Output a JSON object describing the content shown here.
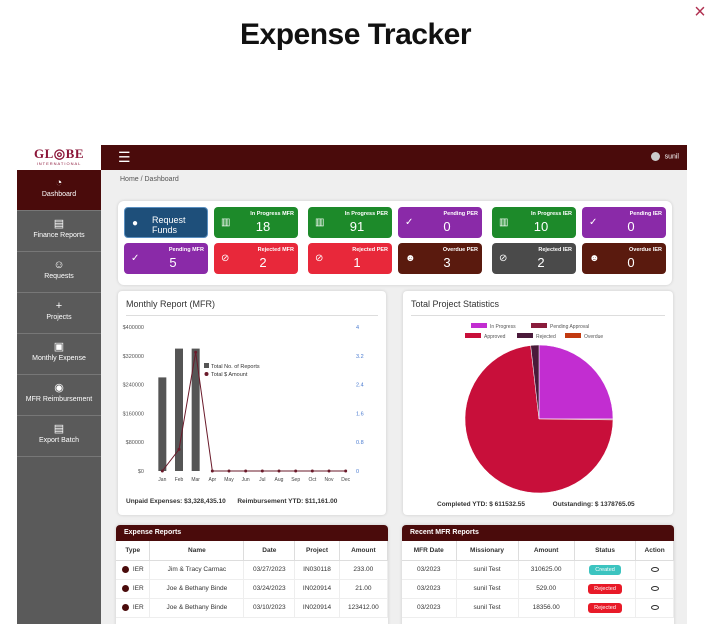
{
  "page": {
    "title": "Expense Tracker",
    "close": "×"
  },
  "logo": {
    "main": "GL◎BE",
    "sub": "INTERNATIONAL"
  },
  "sidebar": {
    "items": [
      {
        "icon": "◔",
        "icon_name": "dashboard-icon",
        "label": "Dashboard"
      },
      {
        "icon": "▤",
        "icon_name": "file-icon",
        "label": "Finance Reports"
      },
      {
        "icon": "☺",
        "icon_name": "requests-icon",
        "label": "Requests"
      },
      {
        "icon": "+",
        "icon_name": "plus-icon",
        "label": "Projects"
      },
      {
        "icon": "▣",
        "icon_name": "money-icon",
        "label": "Monthly Expense"
      },
      {
        "icon": "◉",
        "icon_name": "reimbursement-icon",
        "label": "MFR Reimbursement"
      },
      {
        "icon": "▤",
        "icon_name": "export-icon",
        "label": "Export Batch"
      }
    ]
  },
  "topbar": {
    "menu_icon": "☰",
    "user": "sunil"
  },
  "breadcrumb": "Home / Dashboard",
  "cards": [
    {
      "title": "Request Funds",
      "value": "",
      "color": "#1e4f7a",
      "icon": "●"
    },
    {
      "title": "In Progress MFR",
      "value": "18",
      "color": "#1d8a2a",
      "icon": "▥"
    },
    {
      "title": "In Progress PER",
      "value": "91",
      "color": "#1d8a2a",
      "icon": "▥"
    },
    {
      "title": "Pending PER",
      "value": "0",
      "color": "#8a2aa8",
      "icon": "✓"
    },
    {
      "title": "In Progress IER",
      "value": "10",
      "color": "#1d8a2a",
      "icon": "▥"
    },
    {
      "title": "Pending IER",
      "value": "0",
      "color": "#8a2aa8",
      "icon": "✓"
    },
    {
      "title": "Pending MFR",
      "value": "5",
      "color": "#8a2aa8",
      "icon": "✓"
    },
    {
      "title": "Rejected MFR",
      "value": "2",
      "color": "#e8283a",
      "icon": "⊘"
    },
    {
      "title": "Rejected PER",
      "value": "1",
      "color": "#e8283a",
      "icon": "⊘"
    },
    {
      "title": "Overdue PER",
      "value": "3",
      "color": "#5a1a0e",
      "icon": "☻"
    },
    {
      "title": "Rejected IER",
      "value": "2",
      "color": "#4a4a4a",
      "icon": "⊘"
    },
    {
      "title": "Overdue IER",
      "value": "0",
      "color": "#5a1a0e",
      "icon": "☻"
    }
  ],
  "monthly": {
    "title": "Monthly Report (MFR)",
    "unpaid": "Unpaid Expenses: $3,328,435.10",
    "reimb": "Reimbursement YTD: $11,161.00",
    "legend_bar": "Total No. of Reports",
    "legend_line": "Total $ Amount"
  },
  "stats": {
    "title": "Total Project Statistics",
    "completed": "Completed YTD: $ 611532.55",
    "outstanding": "Outstanding: $ 1378765.05"
  },
  "chart_data": [
    {
      "type": "bar",
      "title": "Monthly Report (MFR)",
      "categories": [
        "Jan",
        "Feb",
        "Mar",
        "Apr",
        "May",
        "Jun",
        "Jul",
        "Aug",
        "Sep",
        "Oct",
        "Nov",
        "Dec"
      ],
      "y_ticks": [
        "$0",
        "$80000",
        "$160000",
        "$240000",
        "$320000",
        "$400000"
      ],
      "y2_ticks": [
        "0",
        "0.8",
        "1.6",
        "2.4",
        "3.2",
        "4"
      ],
      "ylim": [
        0,
        400000
      ],
      "y2lim": [
        0,
        4
      ],
      "series": [
        {
          "name": "Total No. of Reports",
          "type": "bar",
          "axis": "y2",
          "values": [
            2.6,
            3.4,
            3.4,
            0,
            0,
            0,
            0,
            0,
            0,
            0,
            0,
            0
          ]
        },
        {
          "name": "Total $ Amount",
          "type": "line",
          "axis": "y",
          "values": [
            0,
            60000,
            330000,
            0,
            0,
            0,
            0,
            0,
            0,
            0,
            0,
            0
          ]
        }
      ],
      "colors": {
        "bar": "#555555",
        "line": "#6a1a2a"
      }
    },
    {
      "type": "pie",
      "title": "Total Project Statistics",
      "labels": [
        "In Progress",
        "Pending Approval",
        "Approved",
        "Rejected",
        "Overdue"
      ],
      "values": [
        25,
        0.2,
        73,
        1.8,
        0
      ],
      "colors": [
        "#c22dd1",
        "#8a1c3c",
        "#c80f3a",
        "#4a1a3a",
        "#c23a10"
      ]
    }
  ],
  "expense_table": {
    "title": "Expense Reports",
    "columns": [
      "Type",
      "Name",
      "Date",
      "Project",
      "Amount"
    ],
    "rows": [
      [
        "IER",
        "Jim & Tracy Carmac",
        "03/27/2023",
        "IN030118",
        "233.00"
      ],
      [
        "IER",
        "Joe & Bethany Binde",
        "03/24/2023",
        "IN020914",
        "21.00"
      ],
      [
        "IER",
        "Joe & Bethany Binde",
        "03/10/2023",
        "IN020914",
        "123412.00"
      ]
    ]
  },
  "mfr_table": {
    "title": "Recent MFR Reports",
    "columns": [
      "MFR Date",
      "Missionary",
      "Amount",
      "Status",
      "Action"
    ],
    "rows": [
      [
        "03/2023",
        "sunil Test",
        "310625.00",
        "Created"
      ],
      [
        "03/2023",
        "sunil Test",
        "529.00",
        "Rejected"
      ],
      [
        "03/2023",
        "sunil Test",
        "18356.00",
        "Rejected"
      ]
    ],
    "status_colors": {
      "Created": "#3cc4c0",
      "Rejected": "#e81a28"
    }
  }
}
